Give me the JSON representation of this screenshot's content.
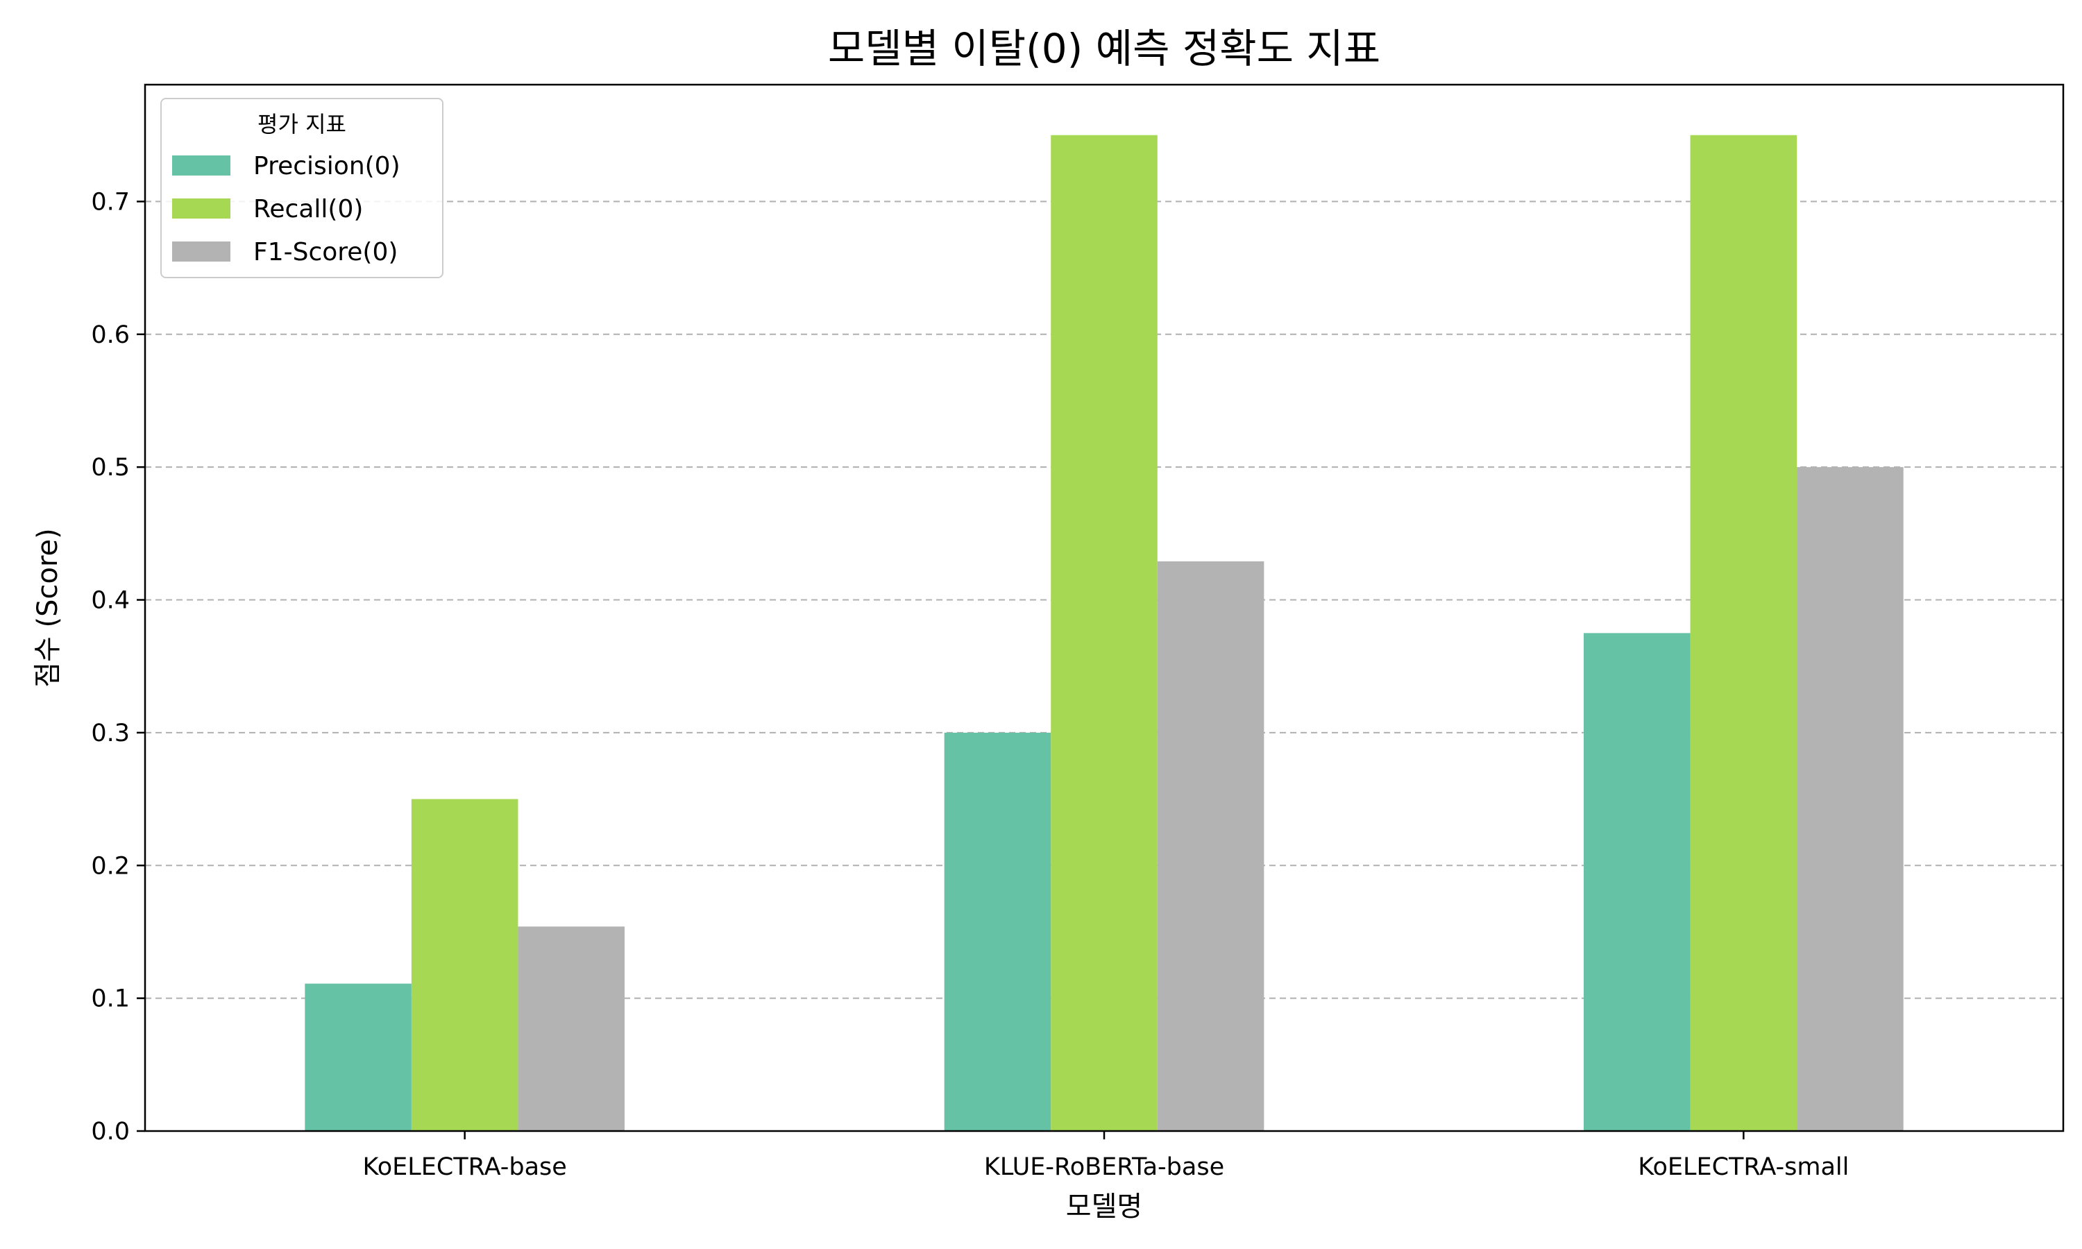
{
  "chart_data": {
    "type": "bar",
    "title": "모델별 이탈(0) 예측 정확도 지표",
    "xlabel": "모델명",
    "ylabel": "점수 (Score)",
    "categories": [
      "KoELECTRA-base",
      "KLUE-RoBERTa-base",
      "KoELECTRA-small"
    ],
    "series": [
      {
        "name": "Precision(0)",
        "color": "#66c2a5",
        "values": [
          0.111,
          0.3,
          0.375
        ]
      },
      {
        "name": "Recall(0)",
        "color": "#a6d854",
        "values": [
          0.25,
          0.75,
          0.75
        ]
      },
      {
        "name": "F1-Score(0)",
        "color": "#b3b3b3",
        "values": [
          0.154,
          0.429,
          0.5
        ]
      }
    ],
    "ylim": [
      0,
      0.788
    ],
    "yticks": [
      0.0,
      0.1,
      0.2,
      0.3,
      0.4,
      0.5,
      0.6,
      0.7
    ],
    "ytick_labels": [
      "0.0",
      "0.1",
      "0.2",
      "0.3",
      "0.4",
      "0.5",
      "0.6",
      "0.7"
    ],
    "grid": "y-dashed",
    "legend": {
      "title": "평가 지표",
      "position": "top-left"
    }
  }
}
